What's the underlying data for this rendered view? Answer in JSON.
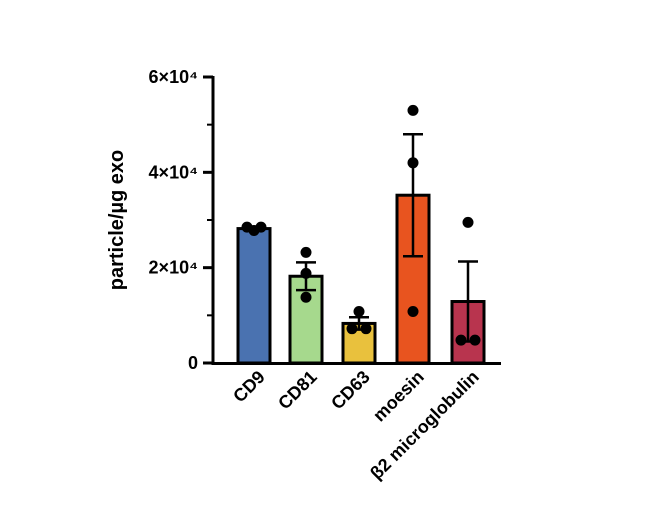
{
  "chart_data": {
    "type": "bar",
    "title": "",
    "xlabel": "",
    "ylabel": "particle/µg exo",
    "ylim": [
      0,
      60000
    ],
    "yticks": [
      {
        "value": 0,
        "label": "0"
      },
      {
        "value": 20000,
        "label": "2×10⁴"
      },
      {
        "value": 40000,
        "label": "4×10⁴"
      },
      {
        "value": 60000,
        "label": "6×10⁴"
      }
    ],
    "grid": false,
    "legend": "none",
    "categories": [
      "CD9",
      "CD81",
      "CD63",
      "moesin",
      "β2 microglobulin"
    ],
    "values": [
      28200,
      18200,
      8300,
      35200,
      12900
    ],
    "error_sem": [
      400,
      2900,
      1300,
      12800,
      8400
    ],
    "points": [
      [
        27800,
        28500,
        28500
      ],
      [
        23200,
        18800,
        13800
      ],
      [
        10800,
        7200,
        7200
      ],
      [
        53000,
        42000,
        10800
      ],
      [
        29500,
        4800,
        4800
      ]
    ],
    "colors": [
      "#4a72b0",
      "#a6d98d",
      "#e9c13d",
      "#e8541f",
      "#b8344e"
    ]
  }
}
